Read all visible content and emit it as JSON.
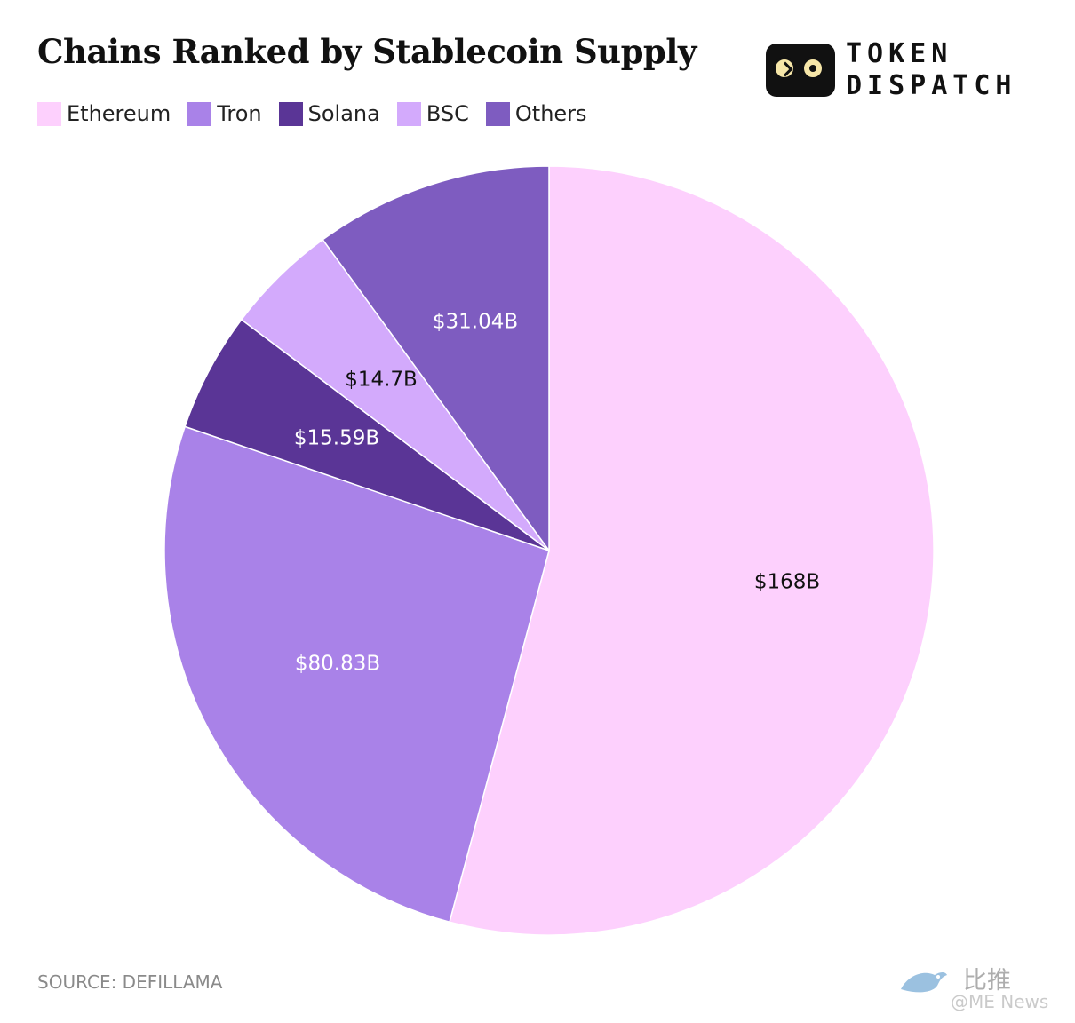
{
  "chart_data": {
    "type": "pie",
    "title": "Chains Ranked by Stablecoin Supply",
    "legend_position": "top-left",
    "slices": [
      {
        "name": "Ethereum",
        "value": 168,
        "label": "$168B",
        "color": "#fdd0fd",
        "label_color": "#111111"
      },
      {
        "name": "Tron",
        "value": 80.83,
        "label": "$80.83B",
        "color": "#a982e8",
        "label_color": "#ffffff"
      },
      {
        "name": "Solana",
        "value": 15.59,
        "label": "$15.59B",
        "color": "#5a3596",
        "label_color": "#ffffff"
      },
      {
        "name": "BSC",
        "value": 14.7,
        "label": "$14.7B",
        "color": "#d3aafc",
        "label_color": "#111111"
      },
      {
        "name": "Others",
        "value": 31.04,
        "label": "$31.04B",
        "color": "#7e5cc0",
        "label_color": "#ffffff"
      }
    ]
  },
  "logo": {
    "line1": "TOKEN",
    "line2": "DISPATCH"
  },
  "source": "SOURCE: DEFILLAMA",
  "watermark": {
    "cn": "比推",
    "en": "@ME News"
  }
}
